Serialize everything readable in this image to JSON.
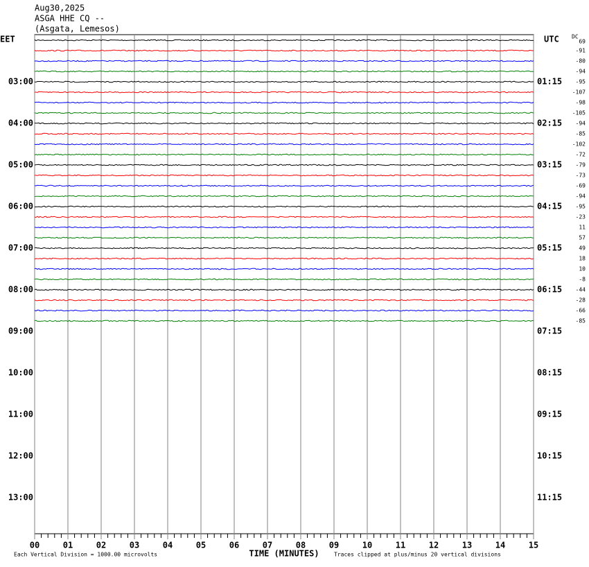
{
  "chart_data": {
    "type": "helicorder",
    "title_lines": [
      "Aug30,2025",
      "ASGA HHE CQ --",
      "(Asgata, Lemesos)"
    ],
    "left_header": "EET",
    "right_header": "UTC",
    "dc_header": "DC",
    "left_labels": [
      "03:00",
      "04:00",
      "05:00",
      "06:00",
      "07:00",
      "08:00",
      "09:00",
      "10:00",
      "11:00",
      "12:00",
      "13:00"
    ],
    "right_labels": [
      "01:15",
      "02:15",
      "03:15",
      "04:15",
      "05:15",
      "06:15",
      "07:15",
      "08:15",
      "09:15",
      "10:15",
      "11:15"
    ],
    "dc_offsets": [
      69,
      -91,
      -80,
      -94,
      -95,
      -107,
      -98,
      -105,
      -94,
      -85,
      -102,
      -72,
      -79,
      -73,
      -69,
      -94,
      -95,
      -23,
      11,
      57,
      49,
      18,
      10,
      -8,
      -44,
      -28,
      -66,
      -85
    ],
    "trace_colors": [
      "#000000",
      "#ff0000",
      "#0000ff",
      "#008000"
    ],
    "xlim": [
      0,
      15
    ],
    "xticks": [
      {
        "value": 0,
        "label": "00"
      },
      {
        "value": 1,
        "label": "01"
      },
      {
        "value": 2,
        "label": "02"
      },
      {
        "value": 3,
        "label": "03"
      },
      {
        "value": 4,
        "label": "04"
      },
      {
        "value": 5,
        "label": "05"
      },
      {
        "value": 6,
        "label": "06"
      },
      {
        "value": 7,
        "label": "07"
      },
      {
        "value": 8,
        "label": "08"
      },
      {
        "value": 9,
        "label": "09"
      },
      10,
      11,
      12,
      13,
      14,
      15
    ],
    "x_label": "TIME (MINUTES)",
    "scale_note": "Each Vertical Division = 1000.00 microvolts",
    "clip_note": "Traces clipped at plus/minus 20 vertical divisions"
  }
}
